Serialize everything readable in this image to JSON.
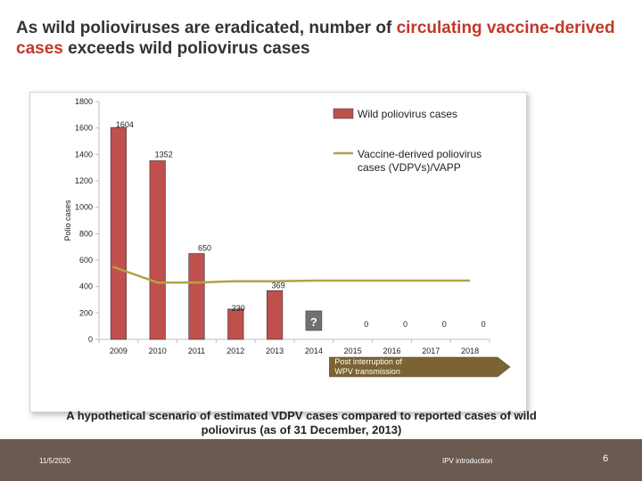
{
  "header": {
    "title_part1": "As wild polioviruses are eradicated, number of ",
    "title_highlight": "circulating vaccine-derived cases",
    "title_part2": " exceeds wild poliovirus cases"
  },
  "chart_data": {
    "type": "bar",
    "categories": [
      "2009",
      "2010",
      "2011",
      "2012",
      "2013",
      "2014",
      "2015",
      "2016",
      "2017",
      "2018"
    ],
    "ylabel": "Polio cases",
    "ylim": [
      0,
      1800
    ],
    "yticks": [
      0,
      200,
      400,
      600,
      800,
      1000,
      1200,
      1400,
      1600,
      1800
    ],
    "series": [
      {
        "name": "Wild poliovirus cases",
        "type": "bar",
        "color": "#c0504d",
        "values": [
          1604,
          1352,
          650,
          230,
          369,
          null,
          0,
          0,
          0,
          0
        ],
        "labels": [
          "1604",
          "1352",
          "650",
          "230",
          "369",
          "?",
          "0",
          "0",
          "0",
          "0"
        ]
      },
      {
        "name": "Vaccine-derived poliovirus cases (VDPVs)/VAPP",
        "type": "line",
        "color": "#b3a148",
        "values": [
          550,
          430,
          430,
          440,
          440,
          445,
          445,
          445,
          445,
          445
        ]
      }
    ],
    "legend_position": "top-right",
    "annotation": "Post interruption of WPV transmission",
    "annotation_color": "#7b6334"
  },
  "caption": "A hypothetical scenario of estimated VDPV cases compared to reported cases of wild poliovirus (as of 31 December, 2013)",
  "footer": {
    "date": "11/5/2020",
    "center": "IPV introduction",
    "page": "6"
  },
  "colors": {
    "footer_bg": "#6b5a52",
    "title_highlight": "#c0392b"
  }
}
